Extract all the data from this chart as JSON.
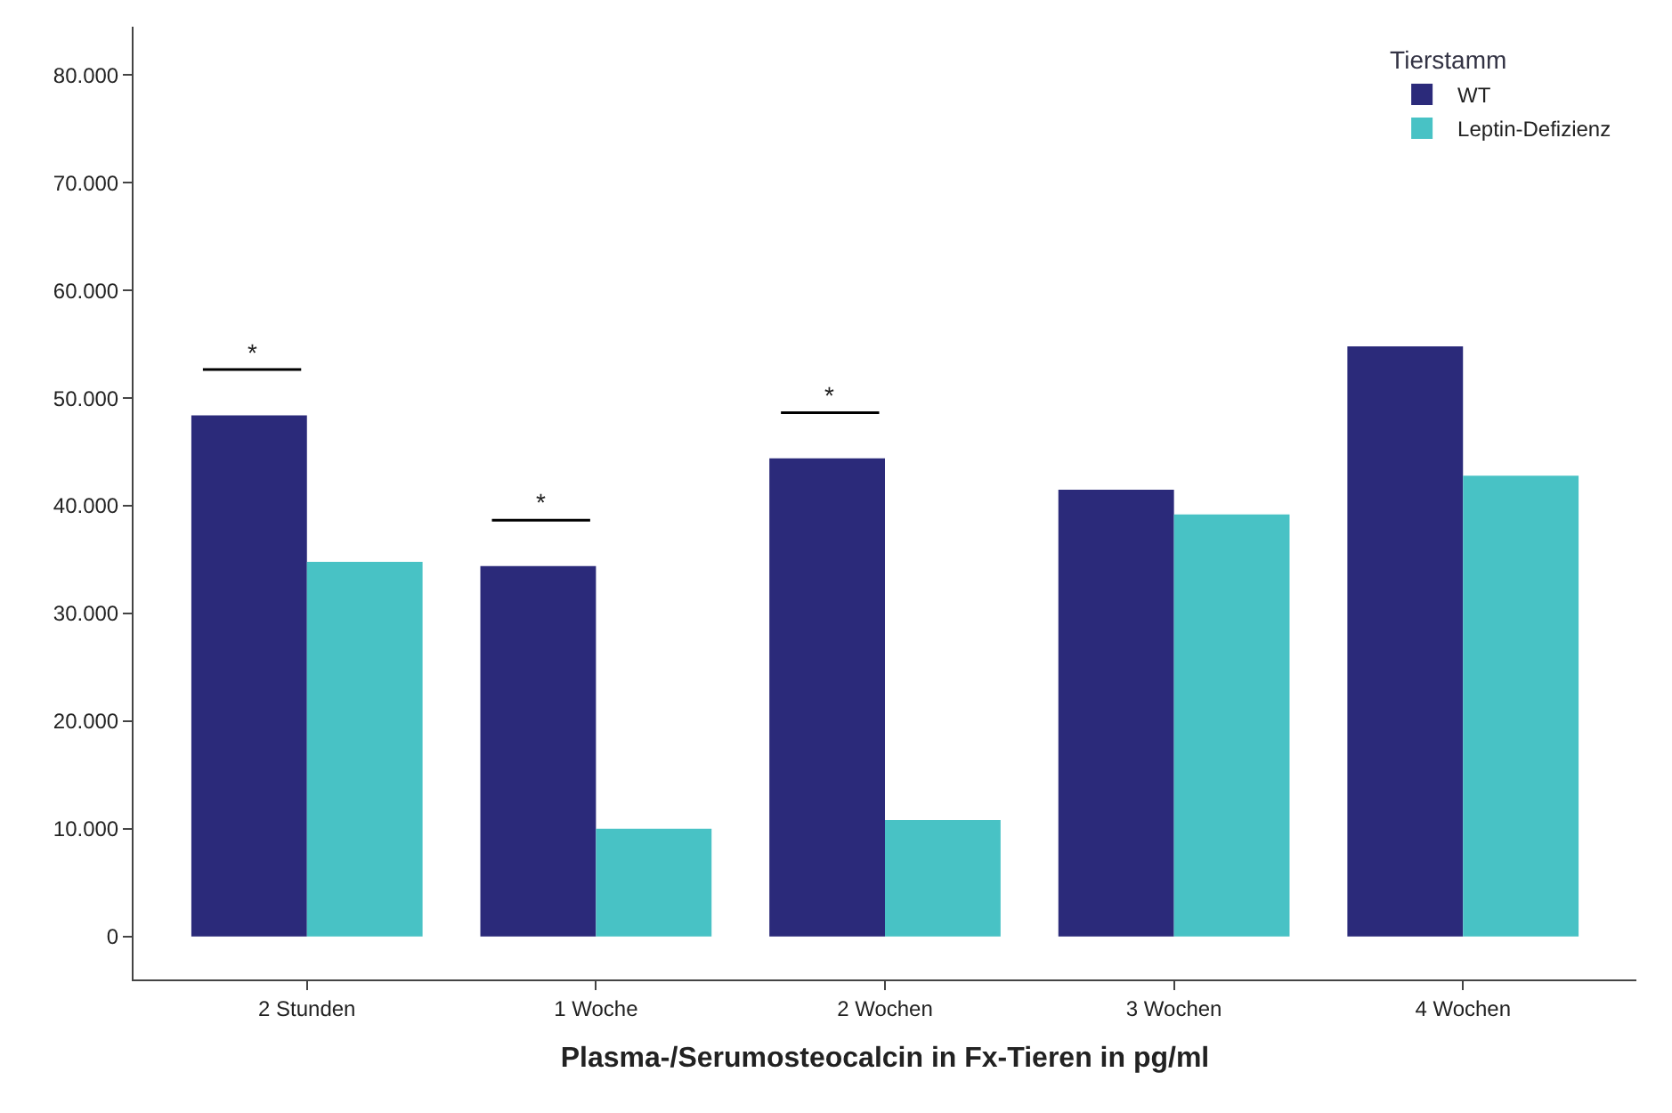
{
  "chart_data": {
    "type": "bar",
    "xlabel": "Plasma-/Serumosteocalcin in Fx-Tieren in pg/ml",
    "legend_title": "Tierstamm",
    "categories": [
      "2 Stunden",
      "1 Woche",
      "2 Wochen",
      "3 Wochen",
      "4 Wochen"
    ],
    "series": [
      {
        "name": "WT",
        "color": "#2b2a7a",
        "values": [
          48400,
          34400,
          44400,
          41500,
          54800
        ]
      },
      {
        "name": "Leptin-Defizienz",
        "color": "#48c2c5",
        "values": [
          34800,
          10000,
          10800,
          39200,
          42800
        ]
      }
    ],
    "ylim": [
      -4000,
      84500
    ],
    "yticks": [
      {
        "value": 0,
        "label": "0"
      },
      {
        "value": 10000,
        "label": "10.000"
      },
      {
        "value": 20000,
        "label": "20.000"
      },
      {
        "value": 30000,
        "label": "30.000"
      },
      {
        "value": 40000,
        "label": "40.000"
      },
      {
        "value": 50000,
        "label": "50.000"
      },
      {
        "value": 60000,
        "label": "60.000"
      },
      {
        "value": 70000,
        "label": "70.000"
      },
      {
        "value": 80000,
        "label": "80.000"
      }
    ],
    "annotations": [
      "*",
      "*",
      "*"
    ],
    "legend": "top right"
  }
}
